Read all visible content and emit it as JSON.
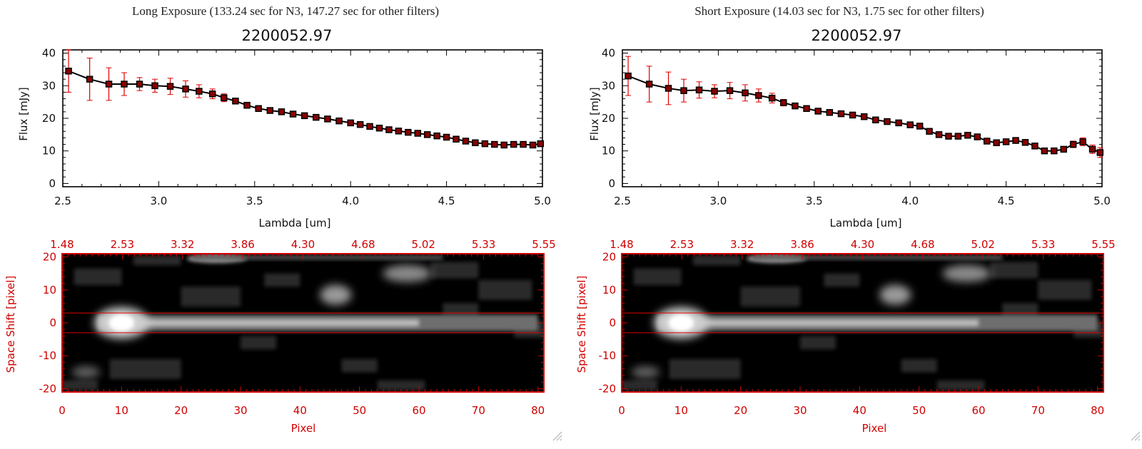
{
  "panels": [
    {
      "header": "Long Exposure (133.24 sec for N3, 147.27 sec for other filters)",
      "chart_data": {
        "type": "line",
        "title": "2200052.97",
        "xlabel": "Lambda [um]",
        "ylabel": "Flux [mJy]",
        "xlim": [
          2.5,
          5.0
        ],
        "ylim": [
          -1,
          41
        ],
        "xticks": [
          "2.5",
          "3.0",
          "3.5",
          "4.0",
          "4.5",
          "5.0"
        ],
        "yticks": [
          "0",
          "10",
          "20",
          "30",
          "40"
        ],
        "series": [
          {
            "x": [
              2.53,
              2.64,
              2.74,
              2.82,
              2.9,
              2.98,
              3.06,
              3.14,
              3.21,
              3.28,
              3.34,
              3.4,
              3.46,
              3.52,
              3.58,
              3.64,
              3.7,
              3.76,
              3.82,
              3.88,
              3.94,
              4.0,
              4.05,
              4.1,
              4.15,
              4.2,
              4.25,
              4.3,
              4.35,
              4.4,
              4.45,
              4.5,
              4.55,
              4.6,
              4.65,
              4.7,
              4.75,
              4.8,
              4.85,
              4.9,
              4.95,
              4.99
            ],
            "y": [
              34.5,
              32.0,
              30.5,
              30.5,
              30.5,
              30.0,
              29.8,
              29.0,
              28.3,
              27.5,
              26.3,
              25.3,
              24.0,
              23.0,
              22.4,
              22.0,
              21.3,
              20.8,
              20.3,
              19.8,
              19.2,
              18.6,
              18.1,
              17.5,
              17.0,
              16.5,
              16.1,
              15.7,
              15.4,
              15.0,
              14.6,
              14.2,
              13.6,
              13.0,
              12.5,
              12.2,
              12.0,
              11.8,
              12.0,
              12.0,
              11.8,
              12.2
            ],
            "err": [
              6.5,
              6.5,
              5.0,
              3.5,
              2.0,
              2.0,
              2.5,
              2.5,
              2.0,
              1.5,
              1.2,
              0.9,
              0.8,
              0.7,
              0.6,
              0.5,
              0.5,
              0.5,
              0.5,
              0.5,
              0.5,
              0.5,
              0.4,
              0.4,
              0.4,
              0.4,
              0.4,
              0.4,
              0.4,
              0.4,
              0.4,
              0.4,
              0.4,
              0.4,
              0.4,
              0.4,
              0.4,
              0.4,
              0.5,
              0.5,
              0.5,
              0.6
            ]
          }
        ]
      },
      "image_data": {
        "type": "heatmap",
        "xlabel": "Pixel",
        "ylabel": "Space Shift [pixel]",
        "xticks": [
          "0",
          "10",
          "20",
          "30",
          "40",
          "50",
          "60",
          "70",
          "80"
        ],
        "yticks": [
          "20",
          "10",
          "0",
          "-10",
          "-20"
        ],
        "top_ticks": [
          "1.48",
          "2.53",
          "3.32",
          "3.86",
          "4.30",
          "4.68",
          "5.02",
          "5.33",
          "5.55"
        ],
        "xlim": [
          0,
          81
        ],
        "ylim": [
          -21,
          21
        ],
        "aperture": [
          -3,
          3
        ]
      }
    },
    {
      "header": "Short Exposure (14.03 sec for N3, 1.75 sec for other filters)",
      "chart_data": {
        "type": "line",
        "title": "2200052.97",
        "xlabel": "Lambda [um]",
        "ylabel": "Flux [mJy]",
        "xlim": [
          2.5,
          5.0
        ],
        "ylim": [
          -1,
          41
        ],
        "xticks": [
          "2.5",
          "3.0",
          "3.5",
          "4.0",
          "4.5",
          "5.0"
        ],
        "yticks": [
          "0",
          "10",
          "20",
          "30",
          "40"
        ],
        "series": [
          {
            "x": [
              2.53,
              2.64,
              2.74,
              2.82,
              2.9,
              2.98,
              3.06,
              3.14,
              3.21,
              3.28,
              3.34,
              3.4,
              3.46,
              3.52,
              3.58,
              3.64,
              3.7,
              3.76,
              3.82,
              3.88,
              3.94,
              4.0,
              4.05,
              4.1,
              4.15,
              4.2,
              4.25,
              4.3,
              4.35,
              4.4,
              4.45,
              4.5,
              4.55,
              4.6,
              4.65,
              4.7,
              4.75,
              4.8,
              4.85,
              4.9,
              4.95,
              4.99
            ],
            "y": [
              33.0,
              30.5,
              29.2,
              28.5,
              28.7,
              28.3,
              28.5,
              27.8,
              27.0,
              26.2,
              24.8,
              23.8,
              23.0,
              22.2,
              21.8,
              21.4,
              21.0,
              20.5,
              19.5,
              19.0,
              18.6,
              18.0,
              17.6,
              16.0,
              15.0,
              14.5,
              14.5,
              14.8,
              14.3,
              13.0,
              12.5,
              12.8,
              13.2,
              12.6,
              11.5,
              10.0,
              10.0,
              10.5,
              12.0,
              12.8,
              10.5,
              9.5
            ],
            "err": [
              6.0,
              5.5,
              5.0,
              3.5,
              2.5,
              2.0,
              2.5,
              2.5,
              2.0,
              1.5,
              1.0,
              0.8,
              0.7,
              0.6,
              0.5,
              0.5,
              0.5,
              0.5,
              0.5,
              0.5,
              0.5,
              0.5,
              0.5,
              0.6,
              0.6,
              0.6,
              0.6,
              0.6,
              0.6,
              0.6,
              0.6,
              0.7,
              0.7,
              0.7,
              0.7,
              0.8,
              0.8,
              0.8,
              1.0,
              1.2,
              1.3,
              1.5
            ]
          }
        ]
      },
      "image_data": {
        "type": "heatmap",
        "xlabel": "Pixel",
        "ylabel": "Space Shift [pixel]",
        "xticks": [
          "0",
          "10",
          "20",
          "30",
          "40",
          "50",
          "60",
          "70",
          "80"
        ],
        "yticks": [
          "20",
          "10",
          "0",
          "-10",
          "-20"
        ],
        "top_ticks": [
          "1.48",
          "2.53",
          "3.32",
          "3.86",
          "4.30",
          "4.68",
          "5.02",
          "5.33",
          "5.55"
        ],
        "xlim": [
          0,
          81
        ],
        "ylim": [
          -21,
          21
        ],
        "aperture": [
          -3,
          3
        ]
      }
    }
  ],
  "colors": {
    "line": "#000000",
    "marker": "#8b0000",
    "errorbar": "#e00000",
    "image_axis": "#d00000",
    "aperture": "#e00000"
  }
}
